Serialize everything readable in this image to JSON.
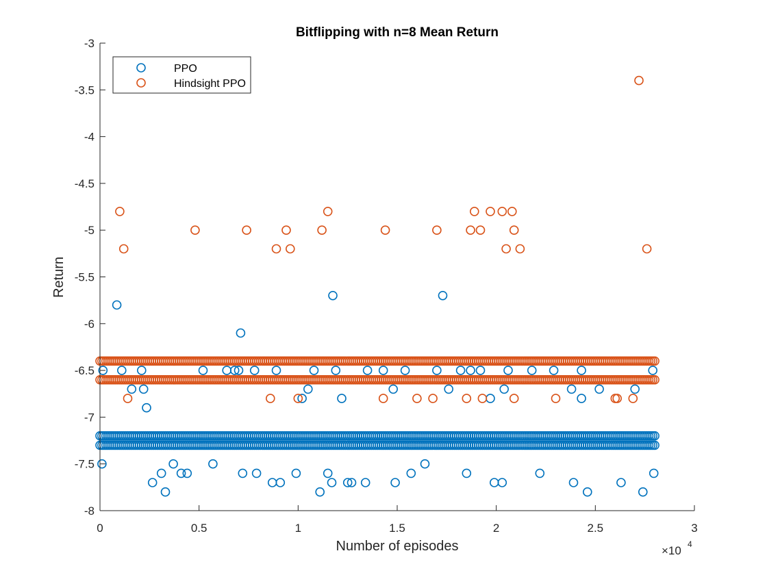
{
  "chart_data": {
    "type": "scatter",
    "title": "Bitflipping with n=8 Mean Return",
    "xlabel": "Number of episodes",
    "ylabel": "Return",
    "x_exponent_label": "×10",
    "x_exponent_power": "4",
    "xlim": [
      0,
      30000
    ],
    "ylim": [
      -8,
      -3
    ],
    "xticks": [
      0,
      5000,
      10000,
      15000,
      20000,
      25000,
      30000
    ],
    "xtick_labels": [
      "0",
      "0.5",
      "1",
      "1.5",
      "2",
      "2.5",
      "3"
    ],
    "yticks": [
      -3,
      -3.5,
      -4,
      -4.5,
      -5,
      -5.5,
      -6,
      -6.5,
      -7,
      -7.5,
      -8
    ],
    "ytick_labels": [
      "-3",
      "-3.5",
      "-4",
      "-4.5",
      "-5",
      "-5.5",
      "-6",
      "-6.5",
      "-7",
      "-7.5",
      "-8"
    ],
    "grid": false,
    "legend_position": "top-left",
    "series": [
      {
        "name": "PPO",
        "color": "#0072BD",
        "marker": "open-circle",
        "bands": [
          {
            "y": -7.2,
            "x_range": [
              0,
              28000
            ],
            "step": 100
          },
          {
            "y": -7.3,
            "x_range": [
              0,
              28000
            ],
            "step": 100
          }
        ],
        "points": [
          [
            150,
            -6.5
          ],
          [
            100,
            -7.5
          ],
          [
            850,
            -5.8
          ],
          [
            1100,
            -6.5
          ],
          [
            1600,
            -6.7
          ],
          [
            2100,
            -6.5
          ],
          [
            2200,
            -6.7
          ],
          [
            2350,
            -6.9
          ],
          [
            2650,
            -7.7
          ],
          [
            3100,
            -7.6
          ],
          [
            3300,
            -7.8
          ],
          [
            3700,
            -7.5
          ],
          [
            4100,
            -7.6
          ],
          [
            4400,
            -7.6
          ],
          [
            5200,
            -6.5
          ],
          [
            5700,
            -7.5
          ],
          [
            6400,
            -6.5
          ],
          [
            6800,
            -6.5
          ],
          [
            7000,
            -6.5
          ],
          [
            7100,
            -6.1
          ],
          [
            7200,
            -7.6
          ],
          [
            7800,
            -6.5
          ],
          [
            7900,
            -7.6
          ],
          [
            8700,
            -7.7
          ],
          [
            8900,
            -6.5
          ],
          [
            9100,
            -7.7
          ],
          [
            9900,
            -7.6
          ],
          [
            10200,
            -6.8
          ],
          [
            10500,
            -6.7
          ],
          [
            10800,
            -6.5
          ],
          [
            11100,
            -7.8
          ],
          [
            11500,
            -7.6
          ],
          [
            11700,
            -7.7
          ],
          [
            11750,
            -5.7
          ],
          [
            11900,
            -6.5
          ],
          [
            12200,
            -6.8
          ],
          [
            12500,
            -7.7
          ],
          [
            12700,
            -7.7
          ],
          [
            13400,
            -7.7
          ],
          [
            13500,
            -6.5
          ],
          [
            14300,
            -6.5
          ],
          [
            14800,
            -6.7
          ],
          [
            14900,
            -7.7
          ],
          [
            15400,
            -6.5
          ],
          [
            15700,
            -7.6
          ],
          [
            16400,
            -7.5
          ],
          [
            17000,
            -6.5
          ],
          [
            17300,
            -5.7
          ],
          [
            17600,
            -6.7
          ],
          [
            18200,
            -6.5
          ],
          [
            18500,
            -7.6
          ],
          [
            18700,
            -6.5
          ],
          [
            19200,
            -6.5
          ],
          [
            19700,
            -6.8
          ],
          [
            19900,
            -7.7
          ],
          [
            20300,
            -7.7
          ],
          [
            20400,
            -6.7
          ],
          [
            20600,
            -6.5
          ],
          [
            21800,
            -6.5
          ],
          [
            22200,
            -7.6
          ],
          [
            22900,
            -6.5
          ],
          [
            23800,
            -6.7
          ],
          [
            23900,
            -7.7
          ],
          [
            24300,
            -6.5
          ],
          [
            24300,
            -6.8
          ],
          [
            24600,
            -7.8
          ],
          [
            25200,
            -6.7
          ],
          [
            26300,
            -7.7
          ],
          [
            27000,
            -6.7
          ],
          [
            27400,
            -7.8
          ],
          [
            27900,
            -6.5
          ],
          [
            27950,
            -7.6
          ]
        ]
      },
      {
        "name": "Hindsight PPO",
        "color": "#D95319",
        "marker": "open-circle",
        "bands": [
          {
            "y": -6.4,
            "x_range": [
              0,
              28000
            ],
            "step": 100
          },
          {
            "y": -6.6,
            "x_range": [
              0,
              28000
            ],
            "step": 100
          }
        ],
        "points": [
          [
            1000,
            -4.8
          ],
          [
            1200,
            -5.2
          ],
          [
            1400,
            -6.8
          ],
          [
            4800,
            -5.0
          ],
          [
            7400,
            -5.0
          ],
          [
            8600,
            -6.8
          ],
          [
            8900,
            -5.2
          ],
          [
            9400,
            -5.0
          ],
          [
            9600,
            -5.2
          ],
          [
            10000,
            -6.8
          ],
          [
            11200,
            -5.0
          ],
          [
            11500,
            -4.8
          ],
          [
            14300,
            -6.8
          ],
          [
            14400,
            -5.0
          ],
          [
            16000,
            -6.8
          ],
          [
            16800,
            -6.8
          ],
          [
            17000,
            -5.0
          ],
          [
            18500,
            -6.8
          ],
          [
            18700,
            -5.0
          ],
          [
            18900,
            -4.8
          ],
          [
            19200,
            -5.0
          ],
          [
            19300,
            -6.8
          ],
          [
            19700,
            -4.8
          ],
          [
            20300,
            -4.8
          ],
          [
            20500,
            -5.2
          ],
          [
            20800,
            -4.8
          ],
          [
            20900,
            -5.0
          ],
          [
            20900,
            -6.8
          ],
          [
            21200,
            -5.2
          ],
          [
            23000,
            -6.8
          ],
          [
            26000,
            -6.8
          ],
          [
            26100,
            -6.8
          ],
          [
            26900,
            -6.8
          ],
          [
            27200,
            -3.4
          ],
          [
            27600,
            -5.2
          ]
        ]
      }
    ]
  }
}
